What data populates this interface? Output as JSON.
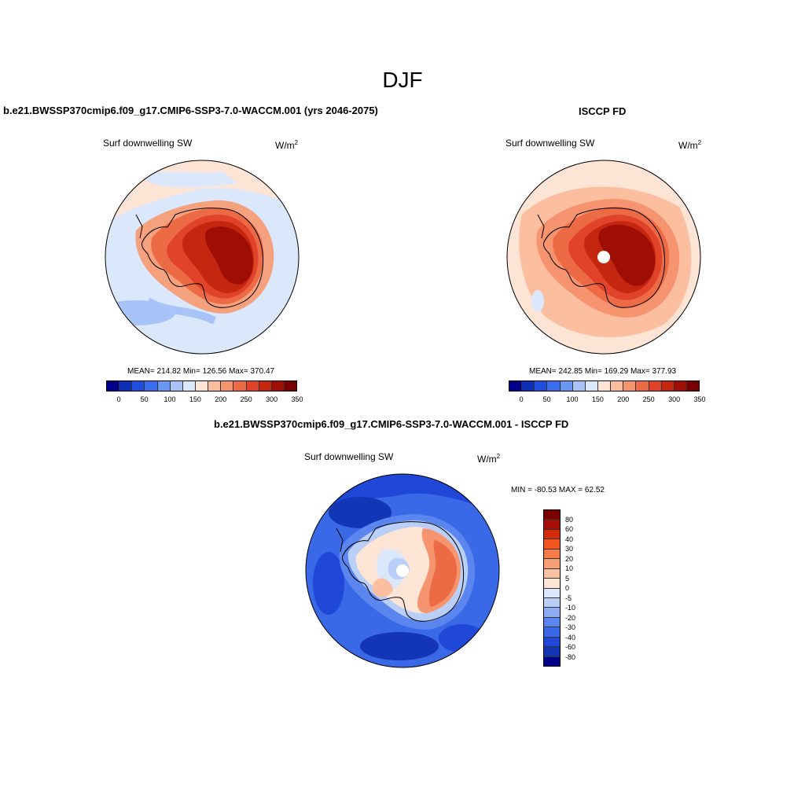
{
  "figure": {
    "title": "DJF"
  },
  "panels": [
    {
      "title": "b.e21.BWSSP370cmip6.f09_g17.CMIP6-SSP3-7.0-WACCM.001 (yrs 2046-2075)",
      "variable": "Surf downwelling SW",
      "units": "W/m",
      "units_sup": "2",
      "stats": {
        "mean": "214.82",
        "min": "126.56",
        "max": "370.47",
        "text": "MEAN= 214.82  Min= 126.56  Max= 370.47"
      }
    },
    {
      "title": "ISCCP FD",
      "variable": "Surf downwelling SW",
      "units": "W/m",
      "units_sup": "2",
      "stats": {
        "mean": "242.85",
        "min": "169.29",
        "max": "377.93",
        "text": "MEAN= 242.85  Min= 169.29  Max= 377.93"
      }
    },
    {
      "title": "b.e21.BWSSP370cmip6.f09_g17.CMIP6-SSP3-7.0-WACCM.001 - ISCCP FD",
      "variable": "Surf downwelling SW",
      "units": "W/m",
      "units_sup": "2",
      "stats": {
        "min": "-80.53",
        "max": "62.52",
        "text": "MIN = -80.53 MAX =  62.52"
      }
    }
  ],
  "colorbars": {
    "abs": {
      "colors": [
        "#00008b",
        "#0d2fb8",
        "#1f4fe0",
        "#3a6ff0",
        "#6a96f4",
        "#a7c3f8",
        "#dbe8fb",
        "#fde4d4",
        "#fbbfa0",
        "#f5946e",
        "#ec6a44",
        "#e0432a",
        "#c5260f",
        "#9e0e05",
        "#7a0000"
      ],
      "tick_labels": [
        "0",
        "50",
        "100",
        "150",
        "200",
        "250",
        "300",
        "350"
      ]
    },
    "diff": {
      "colors": [
        "#7a0000",
        "#a50f05",
        "#d42a0c",
        "#f0561d",
        "#f57c46",
        "#f89f73",
        "#fac2a2",
        "#fde4d4",
        "#dbe8fb",
        "#b9cff8",
        "#8cadf4",
        "#5b86ef",
        "#3a69e8",
        "#1f47d8",
        "#1236b5",
        "#00008b"
      ],
      "tick_labels": [
        "80",
        "60",
        "40",
        "30",
        "20",
        "10",
        "5",
        "0",
        "-5",
        "-10",
        "-20",
        "-30",
        "-40",
        "-60",
        "-80"
      ]
    }
  },
  "chart_data": [
    {
      "type": "heatmap",
      "title": "b.e21.BWSSP370cmip6.f09_g17.CMIP6-SSP3-7.0-WACCM.001 (yrs 2046-2075)",
      "variable": "Surf downwelling SW",
      "units": "W/m2",
      "projection": "south polar stereographic",
      "colorbar_levels": [
        0,
        50,
        100,
        150,
        200,
        250,
        300,
        350
      ],
      "stats": {
        "mean": 214.82,
        "min": 126.56,
        "max": 370.47
      }
    },
    {
      "type": "heatmap",
      "title": "ISCCP FD",
      "variable": "Surf downwelling SW",
      "units": "W/m2",
      "projection": "south polar stereographic",
      "colorbar_levels": [
        0,
        50,
        100,
        150,
        200,
        250,
        300,
        350
      ],
      "stats": {
        "mean": 242.85,
        "min": 169.29,
        "max": 377.93
      }
    },
    {
      "type": "heatmap",
      "title": "b.e21.BWSSP370cmip6.f09_g17.CMIP6-SSP3-7.0-WACCM.001 - ISCCP FD",
      "variable": "Surf downwelling SW",
      "units": "W/m2",
      "projection": "south polar stereographic",
      "colorbar_levels": [
        -80,
        -60,
        -40,
        -30,
        -20,
        -10,
        -5,
        0,
        5,
        10,
        20,
        30,
        40,
        60,
        80
      ],
      "stats": {
        "min": -80.53,
        "max": 62.52
      }
    }
  ]
}
